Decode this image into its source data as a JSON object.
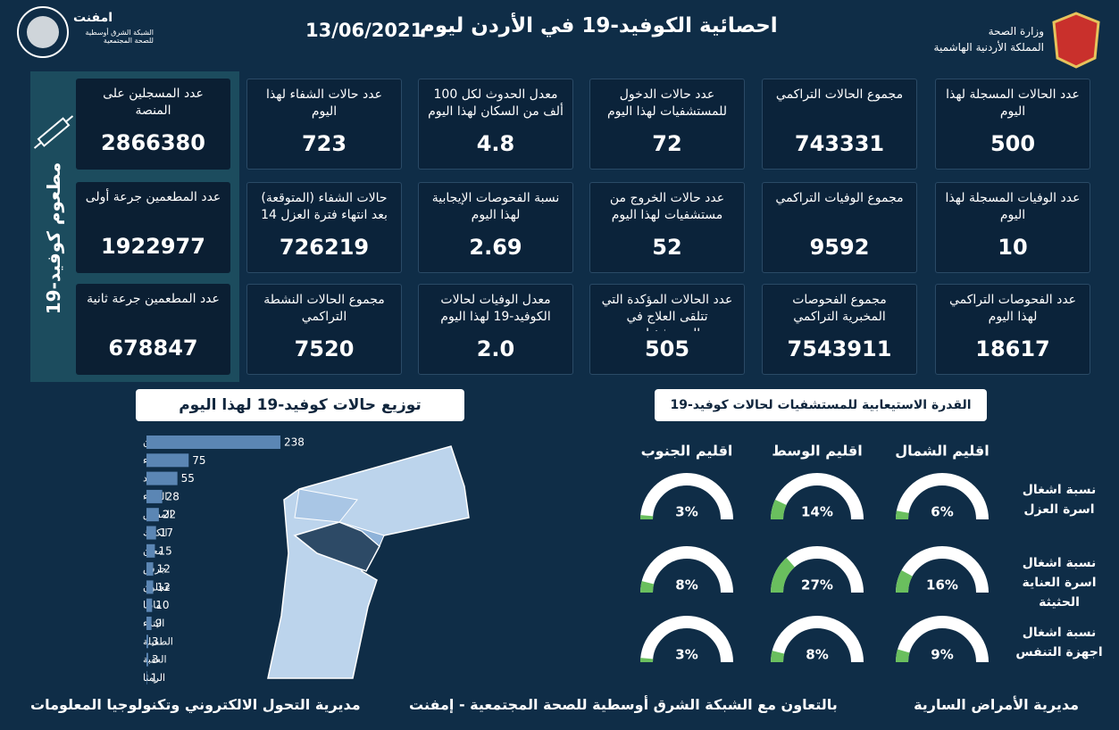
{
  "header": {
    "title": "احصائية الكوفيد-19 في الأردن ليوم",
    "date": "13/06/2021",
    "ministry": "وزارة الصحة",
    "kingdom": "المملكة الأردنية الهاشمية",
    "logo_name": "امفنت",
    "logo_subtitle": "الشبكة الشرق أوسطية للصحة المجتمعية"
  },
  "stats": [
    [
      {
        "label": "عدد الحالات المسجلة لهذا اليوم",
        "value": 500
      },
      {
        "label": "مجموع الحالات التراكمي",
        "value": 743331
      },
      {
        "label": "عدد حالات الدخول للمستشفيات لهذا اليوم",
        "value": 72
      },
      {
        "label": "معدل الحدوث لكل 100 ألف من السكان لهذا اليوم",
        "value": 4.8
      },
      {
        "label": "عدد حالات الشفاء لهذا اليوم",
        "value": 723
      }
    ],
    [
      {
        "label": "عدد الوفيات المسجلة لهذا اليوم",
        "value": 10
      },
      {
        "label": "مجموع الوفيات التراكمي",
        "value": 9592
      },
      {
        "label": "عدد حالات الخروج من مستشفيات لهذا اليوم",
        "value": 52
      },
      {
        "label": "نسبة الفحوصات الإيجابية لهذا اليوم",
        "value": 2.69
      },
      {
        "label": "حالات الشفاء (المتوقعة) بعد انتهاء فترة العزل 14 يوم",
        "value": 726219
      }
    ],
    [
      {
        "label": "عدد الفحوصات التراكمي لهذا اليوم",
        "value": 18617
      },
      {
        "label": "مجموع الفحوصات المخبرية التراكمي",
        "value": 7543911
      },
      {
        "label": "عدد الحالات المؤكدة التي تتلقى العلاج في المستشفيات",
        "value": 505
      },
      {
        "label": "معدل الوفيات لحالات الكوفيد-19 لهذا اليوم",
        "value": "2.0"
      },
      {
        "label": "مجموع الحالات النشطة التراكمي",
        "value": 7520
      }
    ]
  ],
  "vaccine": {
    "title": "مطعوم كوفيد-19",
    "cards": [
      {
        "label": "عدد المسجلين على المنصة",
        "value": 2866380
      },
      {
        "label": "عدد المطعمين جرعة أولى",
        "value": 1922977
      },
      {
        "label": "عدد المطعمين جرعة ثانية",
        "value": 678847
      }
    ]
  },
  "chart_data": [
    {
      "type": "bar",
      "title": "توزيع حالات كوفيد-19 لهذا اليوم",
      "orientation": "horizontal",
      "color": "#5b86b4",
      "categories": [
        "عمان",
        "الزرقاء",
        "اربد",
        "البلقاء",
        "المفرق",
        "الكرك",
        "معان",
        "جرش",
        "عجلون",
        "مادبا",
        "البترء",
        "الطفيلة",
        "العقبة",
        "الرمثا"
      ],
      "values": [
        238,
        75,
        55,
        28,
        22,
        17,
        15,
        12,
        12,
        10,
        9,
        3,
        3,
        1
      ]
    },
    {
      "type": "gauge",
      "title": "القدرة الاستيعابية للمستشفيات لحالات كوفيد-19",
      "ylim": [
        0,
        100
      ],
      "track_color": "#ffffff",
      "categories": [
        "نسبة اشغال اسرة العزل",
        "نسبة اشغال اسرة العناية الحثيثة",
        "نسبة اشغال اجهزة التنفس"
      ],
      "series": [
        {
          "name": "اقليم الشمال",
          "color": "#6abf5e",
          "values": [
            6,
            16,
            9
          ],
          "value_labels": [
            "6%",
            "16%",
            "9%"
          ]
        },
        {
          "name": "اقليم الوسط",
          "color": "#6abf5e",
          "values": [
            14,
            27,
            8
          ],
          "value_labels": [
            "14%",
            "27%",
            "8%"
          ]
        },
        {
          "name": "اقليم الجنوب",
          "color": "#6abf5e",
          "values": [
            3,
            8,
            3
          ],
          "value_labels": [
            "3%",
            "8%",
            "3%"
          ]
        }
      ]
    }
  ],
  "footer": {
    "right": "مديرية الأمراض السارية",
    "center": "بالتعاون مع الشبكة الشرق أوسطية للصحة المجتمعية - إمفنت",
    "left": "مديرية التحول الالكتروني وتكنولوجيا المعلومات"
  }
}
